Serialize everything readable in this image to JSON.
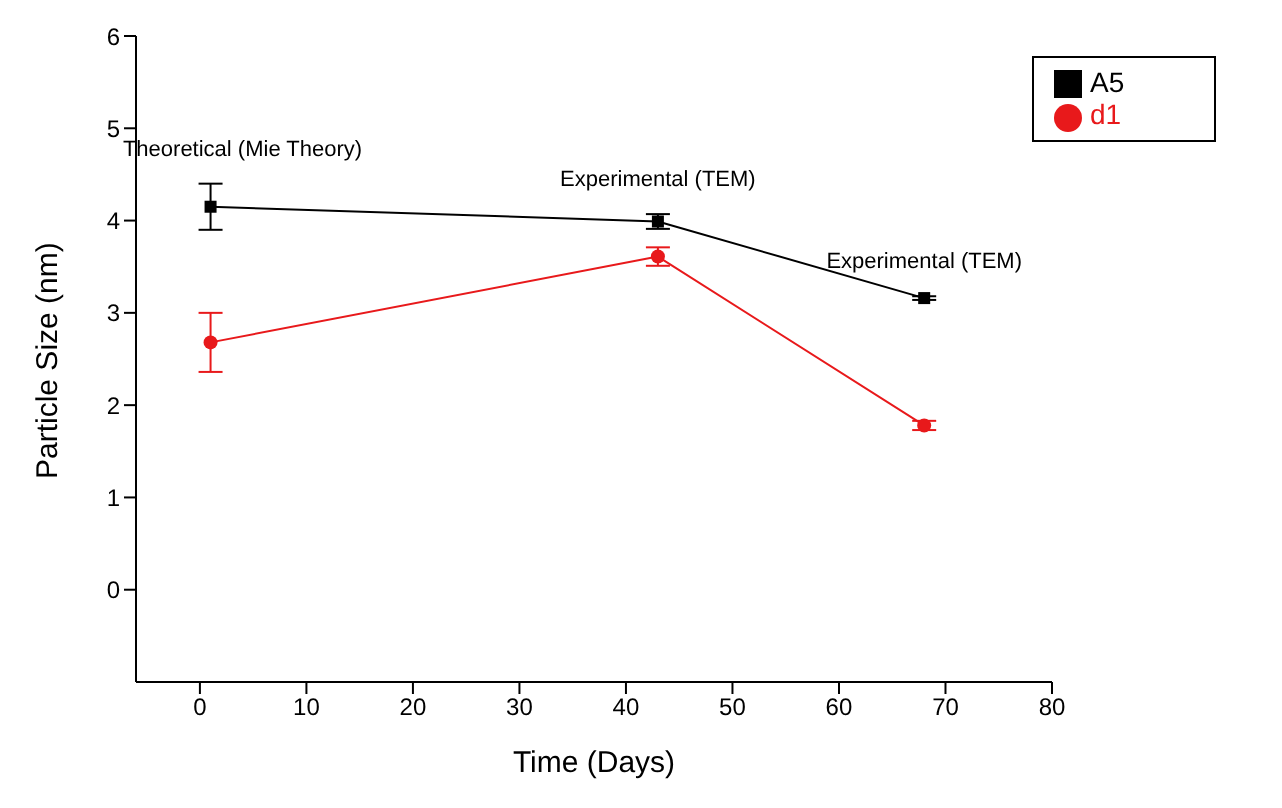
{
  "chart_data": {
    "type": "line",
    "xlabel": "Time (Days)",
    "ylabel": "Particle Size (nm)",
    "xlim": [
      -6,
      80
    ],
    "xticks": [
      0,
      10,
      20,
      30,
      40,
      50,
      60,
      70,
      80
    ],
    "ylim": [
      -1,
      6
    ],
    "yticks": [
      0,
      1,
      2,
      3,
      4,
      5,
      6
    ],
    "grid": false,
    "legend": "top right",
    "line_style": "solid",
    "series": [
      {
        "name": "A5",
        "color": "#000000",
        "marker": "square",
        "x": [
          1,
          43,
          68
        ],
        "values": [
          4.15,
          3.99,
          3.16
        ],
        "errors": [
          0.25,
          0.08,
          0.02
        ]
      },
      {
        "name": "d1",
        "color": "#e8191b",
        "marker": "circle",
        "x": [
          1,
          43,
          68
        ],
        "values": [
          2.68,
          3.61,
          1.78
        ],
        "errors": [
          0.32,
          0.1,
          0.05
        ]
      }
    ],
    "annotations": [
      "Theoretical (Mie Theory)",
      "Experimental (TEM)",
      "Experimental (TEM)"
    ]
  }
}
